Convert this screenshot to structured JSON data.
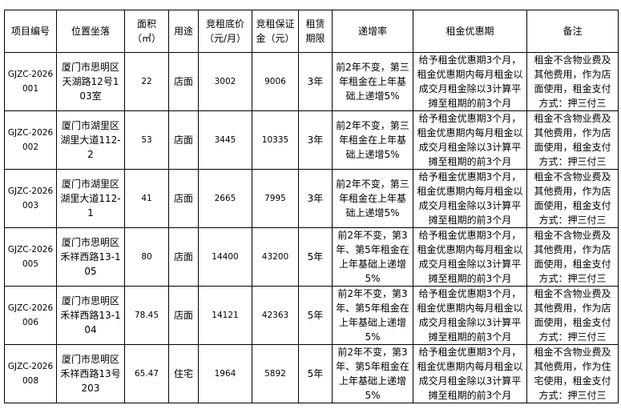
{
  "table": {
    "headers": [
      "项目编号",
      "位置坐落",
      "面积（㎡）",
      "用途",
      "竞租底价（元/月）",
      "竞租保证金（元）",
      "租赁期限",
      "递增率",
      "租金优惠期",
      "备注"
    ],
    "rows": [
      {
        "id": "GJZC-2026001",
        "location": "厦门市思明区天湖路12号103室",
        "area": "22",
        "use": "店面",
        "base_price": "3002",
        "deposit": "9006",
        "term": "3年",
        "increase": "前2年不变，第三年租金在上年基础上递增5%",
        "discount": "给予租金优惠期3个月，租金优惠期内每月租金以成交月租金除以3计算平摊至租期的前3个月",
        "remark": "租金不含物业费及其他费用，作为店面使用，租金支付方式：押三付三"
      },
      {
        "id": "GJZC-2026002",
        "location": "厦门市湖里区湖里大道112-2",
        "area": "53",
        "use": "店面",
        "base_price": "3445",
        "deposit": "10335",
        "term": "3年",
        "increase": "前2年不变，第三年租金在上年基础上递增5%",
        "discount": "给予租金优惠期3个月，租金优惠期内每月租金以成交月租金除以3计算平摊至租期的前3个月",
        "remark": "租金不含物业费及其他费用，作为店面使用，租金支付方式：押三付三"
      },
      {
        "id": "GJZC-2026003",
        "location": "厦门市湖里区湖里大道112-1",
        "area": "41",
        "use": "店面",
        "base_price": "2665",
        "deposit": "7995",
        "term": "3年",
        "increase": "前2年不变，第三年租金在上年基础上递增5%",
        "discount": "给予租金优惠期3个月，租金优惠期内每月租金以成交月租金除以3计算平摊至租期的前3个月",
        "remark": "租金不含物业费及其他费用，作为店面使用，租金支付方式：押三付三"
      },
      {
        "id": "GJZC-2026005",
        "location": "厦门市思明区禾祥西路13-105",
        "area": "80",
        "use": "店面",
        "base_price": "14400",
        "deposit": "43200",
        "term": "5年",
        "increase": "前2年不变，第3年、第5年租金在上年基础上递增5%",
        "discount": "给予租金优惠期3个月，租金优惠期内每月租金以成交月租金除以3计算平摊至租期的前3个月",
        "remark": "租金不含物业费及其他费用，作为店面使用，租金支付方式：押三付三"
      },
      {
        "id": "GJZC-2026006",
        "location": "厦门市思明区禾祥西路13-104",
        "area": "78.45",
        "use": "店面",
        "base_price": "14121",
        "deposit": "42363",
        "term": "5年",
        "increase": "前2年不变，第3年、第5年租金在上年基础上递增5%",
        "discount": "给予租金优惠期3个月，租金优惠期内每月租金以成交月租金除以3计算平摊至租期的前3个月",
        "remark": "租金不含物业费及其他费用，作为店面使用，租金支付方式：押三付三"
      },
      {
        "id": "GJZC-2026008",
        "location": "厦门市思明区禾祥西路13号203",
        "area": "65.47",
        "use": "住宅",
        "base_price": "1964",
        "deposit": "5892",
        "term": "5年",
        "increase": "前2年不变，第3年、第5年租金在上年基础上递增5%",
        "discount": "给予租金优惠期3个月，租金优惠期内每月租金以成交月租金除以3计算平摊至租期的前3个月",
        "remark": "租金不含物业费及其他费用，作为住宅使用，租金支付方式：押三付三"
      }
    ]
  }
}
